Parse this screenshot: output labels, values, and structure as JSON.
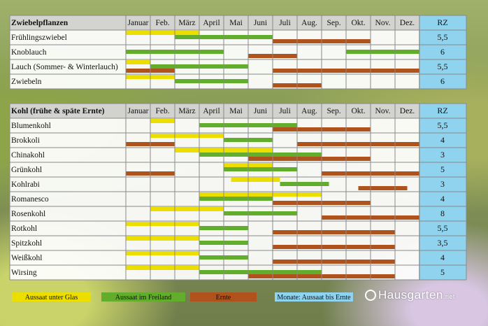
{
  "chart_data": {
    "type": "table",
    "months": [
      "Januar",
      "Feb.",
      "März",
      "April",
      "Mai",
      "Juni",
      "Juli",
      "Aug.",
      "Sep.",
      "Okt.",
      "Nov.",
      "Dez."
    ],
    "rz_header": "RZ",
    "colors": {
      "aussaat_glas": "#ecdf00",
      "aussaat_freiland": "#62ad2c",
      "ernte": "#b0521c",
      "rz": "#8fd3ef"
    },
    "sections": [
      {
        "title": "Zwiebelpflanzen",
        "rows": [
          {
            "name": "Frühlingszwiebel",
            "rz": "5,5",
            "bars": [
              {
                "kind": "glas",
                "start": 0,
                "end": 3
              },
              {
                "kind": "freiland",
                "start": 2,
                "end": 6
              },
              {
                "kind": "ernte",
                "start": 6,
                "end": 10
              }
            ]
          },
          {
            "name": "Knoblauch",
            "rz": "6",
            "bars": [
              {
                "kind": "freiland",
                "start": 0,
                "end": 4
              },
              {
                "kind": "ernte",
                "start": 5,
                "end": 7
              },
              {
                "kind": "freiland",
                "start": 9,
                "end": 12
              }
            ]
          },
          {
            "name": "Lauch (Sommer- & Winterlauch)",
            "rz": "5,5",
            "bars": [
              {
                "kind": "glas",
                "start": 0,
                "end": 1
              },
              {
                "kind": "freiland",
                "start": 1,
                "end": 5
              },
              {
                "kind": "ernte",
                "start": 0,
                "end": 2
              },
              {
                "kind": "ernte",
                "start": 6,
                "end": 12
              }
            ]
          },
          {
            "name": "Zwiebeln",
            "rz": "6",
            "bars": [
              {
                "kind": "glas",
                "start": 0,
                "end": 2
              },
              {
                "kind": "freiland",
                "start": 2,
                "end": 5
              },
              {
                "kind": "ernte",
                "start": 6,
                "end": 8
              }
            ]
          }
        ]
      },
      {
        "title": "Kohl (frühe & späte Ernte)",
        "rows": [
          {
            "name": "Blumenkohl",
            "rz": "5,5",
            "bars": [
              {
                "kind": "glas",
                "start": 1,
                "end": 2
              },
              {
                "kind": "freiland",
                "start": 3,
                "end": 7
              },
              {
                "kind": "ernte",
                "start": 6,
                "end": 10
              }
            ]
          },
          {
            "name": "Brokkoli",
            "rz": "4",
            "bars": [
              {
                "kind": "glas",
                "start": 1,
                "end": 4
              },
              {
                "kind": "freiland",
                "start": 4,
                "end": 6
              },
              {
                "kind": "ernte",
                "start": 0,
                "end": 2
              },
              {
                "kind": "ernte",
                "start": 7,
                "end": 12
              }
            ]
          },
          {
            "name": "Chinakohl",
            "rz": "3",
            "bars": [
              {
                "kind": "glas",
                "start": 2,
                "end": 6
              },
              {
                "kind": "freiland",
                "start": 3,
                "end": 8
              },
              {
                "kind": "ernte",
                "start": 5,
                "end": 10
              }
            ]
          },
          {
            "name": "Grünkohl",
            "rz": "5",
            "bars": [
              {
                "kind": "glas",
                "start": 4,
                "end": 6
              },
              {
                "kind": "freiland",
                "start": 4,
                "end": 7
              },
              {
                "kind": "ernte",
                "start": 0,
                "end": 2
              },
              {
                "kind": "ernte",
                "start": 8,
                "end": 12
              }
            ]
          },
          {
            "name": "Kohlrabi",
            "rz": "3",
            "bars": [
              {
                "kind": "glas",
                "start": 4.3,
                "end": 6.3
              },
              {
                "kind": "freiland",
                "start": 6.3,
                "end": 8.3
              },
              {
                "kind": "ernte",
                "start": 9.5,
                "end": 11.5
              }
            ]
          },
          {
            "name": "Romanesco",
            "rz": "4",
            "bars": [
              {
                "kind": "glas",
                "start": 3,
                "end": 8
              },
              {
                "kind": "freiland",
                "start": 3,
                "end": 6
              },
              {
                "kind": "ernte",
                "start": 6,
                "end": 10
              }
            ]
          },
          {
            "name": "Rosenkohl",
            "rz": "8",
            "bars": [
              {
                "kind": "glas",
                "start": 1,
                "end": 4
              },
              {
                "kind": "freiland",
                "start": 4,
                "end": 7
              },
              {
                "kind": "ernte",
                "start": 8,
                "end": 12
              }
            ]
          },
          {
            "name": "Rotkohl",
            "rz": "5,5",
            "bars": [
              {
                "kind": "glas",
                "start": 0,
                "end": 3
              },
              {
                "kind": "freiland",
                "start": 3,
                "end": 5
              },
              {
                "kind": "ernte",
                "start": 6,
                "end": 11
              }
            ]
          },
          {
            "name": "Spitzkohl",
            "rz": "3,5",
            "bars": [
              {
                "kind": "glas",
                "start": 0,
                "end": 3
              },
              {
                "kind": "freiland",
                "start": 3,
                "end": 5
              },
              {
                "kind": "ernte",
                "start": 6,
                "end": 11
              }
            ]
          },
          {
            "name": "Weißkohl",
            "rz": "4",
            "bars": [
              {
                "kind": "glas",
                "start": 0,
                "end": 3
              },
              {
                "kind": "freiland",
                "start": 3,
                "end": 5
              },
              {
                "kind": "ernte",
                "start": 6,
                "end": 11
              }
            ]
          },
          {
            "name": "Wirsing",
            "rz": "5",
            "bars": [
              {
                "kind": "glas",
                "start": 0,
                "end": 3
              },
              {
                "kind": "freiland",
                "start": 3,
                "end": 8
              },
              {
                "kind": "ernte",
                "start": 5,
                "end": 11
              }
            ]
          }
        ]
      }
    ],
    "legend": [
      {
        "kind": "glas",
        "label": "Aussaat unter Glas"
      },
      {
        "kind": "freiland",
        "label": "Aussaat im Freiland"
      },
      {
        "kind": "ernte",
        "label": "Ernte"
      },
      {
        "kind": "rz",
        "label": "Monate: Aussaat bis Ernte"
      }
    ]
  },
  "logo": {
    "text": "Hausgarten",
    "domain": ".net"
  }
}
